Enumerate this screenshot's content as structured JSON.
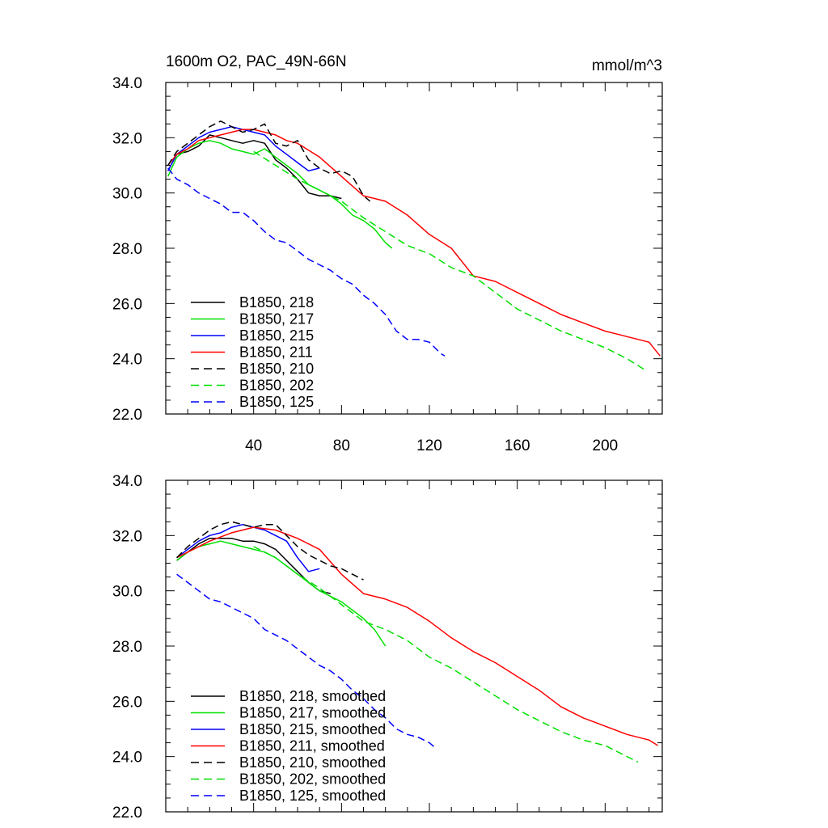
{
  "chart_data": [
    {
      "type": "line",
      "title": "1600m O2, PAC_49N-66N",
      "units": "mmol/m^3",
      "xlabel": "",
      "ylabel": "",
      "xlim": [
        0,
        226
      ],
      "ylim": [
        22.0,
        34.0
      ],
      "x_ticks": [
        40,
        80,
        120,
        160,
        200
      ],
      "x_tick_labels": [
        "40",
        "80",
        "120",
        "160",
        "200"
      ],
      "y_ticks": [
        22.0,
        24.0,
        26.0,
        28.0,
        30.0,
        32.0,
        34.0
      ],
      "y_tick_labels": [
        "22.0",
        "24.0",
        "26.0",
        "28.0",
        "30.0",
        "32.0",
        "34.0"
      ],
      "grid": false,
      "legend_position": "bottom-left",
      "series": [
        {
          "name": "B1850, 218",
          "color": "#000000",
          "dash": "solid",
          "x": [
            1,
            5,
            10,
            15,
            20,
            25,
            30,
            35,
            40,
            45,
            50,
            55,
            60,
            65,
            70,
            75,
            80
          ],
          "y": [
            30.8,
            31.4,
            31.5,
            31.7,
            32.1,
            32.0,
            31.9,
            31.8,
            31.9,
            31.8,
            31.2,
            30.9,
            30.5,
            30.0,
            29.9,
            29.9,
            29.8
          ]
        },
        {
          "name": "B1850, 217",
          "color": "#00e000",
          "dash": "solid",
          "x": [
            1,
            5,
            10,
            15,
            20,
            25,
            30,
            35,
            40,
            45,
            50,
            55,
            60,
            65,
            70,
            75,
            80,
            85,
            90,
            95,
            100,
            103
          ],
          "y": [
            30.6,
            31.3,
            31.6,
            31.8,
            31.9,
            31.8,
            31.6,
            31.5,
            31.4,
            31.6,
            31.3,
            31.0,
            30.7,
            30.3,
            30.1,
            29.9,
            29.6,
            29.2,
            29.0,
            28.7,
            28.2,
            28.0
          ]
        },
        {
          "name": "B1850, 215",
          "color": "#0000ff",
          "dash": "solid",
          "x": [
            1,
            5,
            10,
            15,
            20,
            25,
            30,
            35,
            40,
            45,
            50,
            55,
            60,
            65,
            70
          ],
          "y": [
            30.8,
            31.4,
            31.7,
            32.0,
            32.2,
            32.3,
            32.4,
            32.3,
            32.2,
            32.1,
            31.7,
            31.4,
            31.1,
            30.8,
            30.9
          ]
        },
        {
          "name": "B1850, 211",
          "color": "#ff0000",
          "dash": "solid",
          "x": [
            1,
            5,
            10,
            15,
            20,
            25,
            30,
            35,
            40,
            45,
            50,
            55,
            60,
            70,
            80,
            90,
            100,
            110,
            120,
            130,
            140,
            150,
            160,
            170,
            180,
            190,
            200,
            210,
            220,
            225
          ],
          "y": [
            31.0,
            31.4,
            31.6,
            31.9,
            32.0,
            32.1,
            32.2,
            32.3,
            32.3,
            32.2,
            32.1,
            31.9,
            31.8,
            31.3,
            30.6,
            29.9,
            29.7,
            29.2,
            28.5,
            28.0,
            27.0,
            26.8,
            26.4,
            26.0,
            25.6,
            25.3,
            25.0,
            24.8,
            24.6,
            24.1
          ]
        },
        {
          "name": "B1850, 210",
          "color": "#000000",
          "dash": "dashed",
          "x": [
            1,
            5,
            10,
            15,
            20,
            25,
            30,
            35,
            40,
            45,
            50,
            55,
            60,
            65,
            70,
            75,
            80,
            85,
            90,
            93
          ],
          "y": [
            31.0,
            31.5,
            31.8,
            32.1,
            32.4,
            32.6,
            32.4,
            32.2,
            32.3,
            32.5,
            31.8,
            31.7,
            31.9,
            31.2,
            30.9,
            30.7,
            30.8,
            30.6,
            29.9,
            29.7
          ]
        },
        {
          "name": "B1850, 202",
          "color": "#00e000",
          "dash": "dashed",
          "x": [
            40,
            50,
            60,
            70,
            80,
            90,
            100,
            110,
            120,
            130,
            140,
            150,
            160,
            170,
            180,
            190,
            200,
            210,
            218
          ],
          "y": [
            31.5,
            31.0,
            30.5,
            30.1,
            29.7,
            29.1,
            28.6,
            28.1,
            27.8,
            27.3,
            27.0,
            26.4,
            25.8,
            25.4,
            25.0,
            24.7,
            24.4,
            24.0,
            23.6
          ]
        },
        {
          "name": "B1850, 125",
          "color": "#0000ff",
          "dash": "dashed",
          "x": [
            1,
            5,
            10,
            15,
            20,
            25,
            30,
            35,
            40,
            45,
            50,
            55,
            60,
            65,
            70,
            75,
            80,
            85,
            90,
            95,
            100,
            105,
            110,
            115,
            120,
            125,
            127
          ],
          "y": [
            30.9,
            30.5,
            30.3,
            30.0,
            29.8,
            29.6,
            29.3,
            29.3,
            29.0,
            28.6,
            28.3,
            28.2,
            27.9,
            27.6,
            27.4,
            27.2,
            26.9,
            26.7,
            26.3,
            26.0,
            25.6,
            25.0,
            24.7,
            24.7,
            24.6,
            24.2,
            24.1
          ]
        }
      ]
    },
    {
      "type": "line",
      "title": "",
      "xlabel": "",
      "ylabel": "",
      "xlim": [
        0,
        226
      ],
      "ylim": [
        22.0,
        34.0
      ],
      "x_ticks": [
        40,
        80,
        120,
        160,
        200
      ],
      "x_tick_labels": [
        "",
        "",
        "",
        "",
        ""
      ],
      "y_ticks": [
        22.0,
        24.0,
        26.0,
        28.0,
        30.0,
        32.0,
        34.0
      ],
      "y_tick_labels": [
        "22.0",
        "24.0",
        "26.0",
        "28.0",
        "30.0",
        "32.0",
        "34.0"
      ],
      "grid": false,
      "legend_position": "bottom-left",
      "series": [
        {
          "name": "B1850, 218, smoothed",
          "color": "#000000",
          "dash": "solid",
          "x": [
            5,
            10,
            15,
            20,
            25,
            30,
            35,
            40,
            45,
            50,
            55,
            60,
            65,
            70,
            75
          ],
          "y": [
            31.1,
            31.4,
            31.7,
            31.9,
            31.9,
            31.9,
            31.8,
            31.8,
            31.7,
            31.5,
            31.1,
            30.7,
            30.3,
            30.0,
            29.9
          ]
        },
        {
          "name": "B1850, 217, smoothed",
          "color": "#00e000",
          "dash": "solid",
          "x": [
            5,
            10,
            15,
            20,
            25,
            30,
            35,
            40,
            45,
            50,
            55,
            60,
            65,
            70,
            75,
            80,
            85,
            90,
            95,
            100
          ],
          "y": [
            31.1,
            31.4,
            31.6,
            31.7,
            31.8,
            31.7,
            31.6,
            31.5,
            31.4,
            31.2,
            30.9,
            30.6,
            30.3,
            30.0,
            29.8,
            29.6,
            29.3,
            29.0,
            28.6,
            28.0
          ]
        },
        {
          "name": "B1850, 215, smoothed",
          "color": "#0000ff",
          "dash": "solid",
          "x": [
            5,
            10,
            15,
            20,
            25,
            30,
            35,
            40,
            45,
            50,
            55,
            60,
            65,
            70
          ],
          "y": [
            31.2,
            31.5,
            31.8,
            32.0,
            32.1,
            32.3,
            32.4,
            32.3,
            32.2,
            32.0,
            31.8,
            31.2,
            30.7,
            30.8
          ]
        },
        {
          "name": "B1850, 211, smoothed",
          "color": "#ff0000",
          "dash": "solid",
          "x": [
            5,
            10,
            20,
            30,
            40,
            50,
            60,
            70,
            80,
            90,
            100,
            110,
            120,
            130,
            140,
            150,
            160,
            170,
            180,
            190,
            200,
            210,
            220,
            224
          ],
          "y": [
            31.2,
            31.4,
            31.8,
            32.1,
            32.3,
            32.2,
            31.9,
            31.5,
            30.6,
            29.9,
            29.7,
            29.4,
            28.9,
            28.3,
            27.8,
            27.4,
            26.9,
            26.4,
            25.8,
            25.4,
            25.1,
            24.8,
            24.6,
            24.4
          ]
        },
        {
          "name": "B1850, 210, smoothed",
          "color": "#000000",
          "dash": "dashed",
          "x": [
            5,
            10,
            15,
            20,
            25,
            30,
            35,
            40,
            45,
            50,
            55,
            60,
            65,
            70,
            75,
            80,
            85,
            90
          ],
          "y": [
            31.2,
            31.6,
            31.9,
            32.2,
            32.4,
            32.5,
            32.4,
            32.3,
            32.4,
            32.4,
            32.0,
            31.6,
            31.3,
            31.1,
            30.9,
            30.8,
            30.6,
            30.4
          ]
        },
        {
          "name": "B1850, 202, smoothed",
          "color": "#00e000",
          "dash": "dashed",
          "x": [
            40,
            50,
            60,
            70,
            80,
            90,
            100,
            110,
            120,
            130,
            140,
            150,
            160,
            170,
            180,
            190,
            200,
            210,
            215
          ],
          "y": [
            31.6,
            31.2,
            30.6,
            30.1,
            29.5,
            28.9,
            28.6,
            28.2,
            27.6,
            27.2,
            26.7,
            26.2,
            25.7,
            25.3,
            24.9,
            24.6,
            24.4,
            24.0,
            23.8
          ]
        },
        {
          "name": "B1850, 125, smoothed",
          "color": "#0000ff",
          "dash": "dashed",
          "x": [
            5,
            10,
            15,
            20,
            25,
            30,
            35,
            40,
            45,
            50,
            55,
            60,
            65,
            70,
            75,
            80,
            85,
            90,
            95,
            100,
            105,
            110,
            115,
            120,
            123
          ],
          "y": [
            30.6,
            30.3,
            30.0,
            29.7,
            29.6,
            29.4,
            29.2,
            29.0,
            28.6,
            28.4,
            28.2,
            27.9,
            27.6,
            27.3,
            27.1,
            26.8,
            26.4,
            26.1,
            25.7,
            25.4,
            25.0,
            24.8,
            24.7,
            24.5,
            24.3
          ]
        }
      ]
    }
  ]
}
